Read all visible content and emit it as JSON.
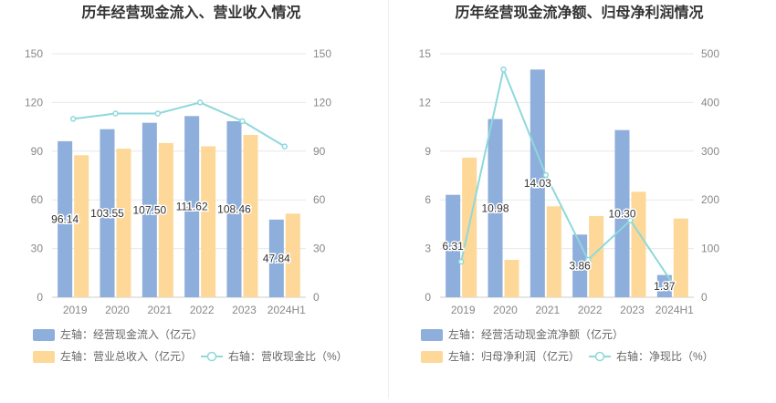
{
  "charts": [
    {
      "title": "历年经营现金流入、营业收入情况",
      "categories": [
        "2019",
        "2020",
        "2021",
        "2022",
        "2023",
        "2024H1"
      ],
      "left_axis": {
        "min": 0,
        "max": 150,
        "ticks": [
          0,
          30,
          60,
          90,
          120,
          150
        ]
      },
      "right_axis": {
        "min": 0,
        "max": 150,
        "ticks": [
          0,
          30,
          60,
          90,
          120,
          150
        ]
      },
      "series": [
        {
          "name": "左轴：经营现金流入（亿元）",
          "type": "bar",
          "axis": "left",
          "color": "#8eaedc",
          "values": [
            96.14,
            103.55,
            107.5,
            111.62,
            108.46,
            47.84
          ],
          "labels": [
            "96.14",
            "103.55",
            "107.50",
            "111.62",
            "108.46",
            "47.84"
          ]
        },
        {
          "name": "左轴：营业总收入（亿元）",
          "type": "bar",
          "axis": "left",
          "color": "#fdd898",
          "values": [
            87.5,
            91.5,
            95.0,
            93.0,
            100.0,
            51.5
          ]
        },
        {
          "name": "右轴：营收现金比（%）",
          "type": "line",
          "axis": "right",
          "color": "#8fd8dc",
          "values": [
            109.9,
            113.2,
            113.2,
            120.0,
            108.5,
            92.9
          ]
        }
      ]
    },
    {
      "title": "历年经营现金流净额、归母净利润情况",
      "categories": [
        "2019",
        "2020",
        "2021",
        "2022",
        "2023",
        "2024H1"
      ],
      "left_axis": {
        "min": 0,
        "max": 15,
        "ticks": [
          0,
          3,
          6,
          9,
          12,
          15
        ]
      },
      "right_axis": {
        "min": 0,
        "max": 500,
        "ticks": [
          0,
          100,
          200,
          300,
          400,
          500
        ]
      },
      "series": [
        {
          "name": "左轴：经营活动现金流净额（亿元）",
          "type": "bar",
          "axis": "left",
          "color": "#8eaedc",
          "values": [
            6.31,
            10.98,
            14.03,
            3.86,
            10.3,
            1.37
          ],
          "labels": [
            "6.31",
            "10.98",
            "14.03",
            "3.86",
            "10.30",
            "1.37"
          ]
        },
        {
          "name": "左轴：归母净利润（亿元）",
          "type": "bar",
          "axis": "left",
          "color": "#fdd898",
          "values": [
            8.6,
            2.3,
            5.6,
            5.0,
            6.5,
            4.85
          ]
        },
        {
          "name": "右轴：净现比（%）",
          "type": "line",
          "axis": "right",
          "color": "#8fd8dc",
          "values": [
            73,
            468,
            251,
            77,
            158,
            28
          ]
        }
      ]
    }
  ]
}
